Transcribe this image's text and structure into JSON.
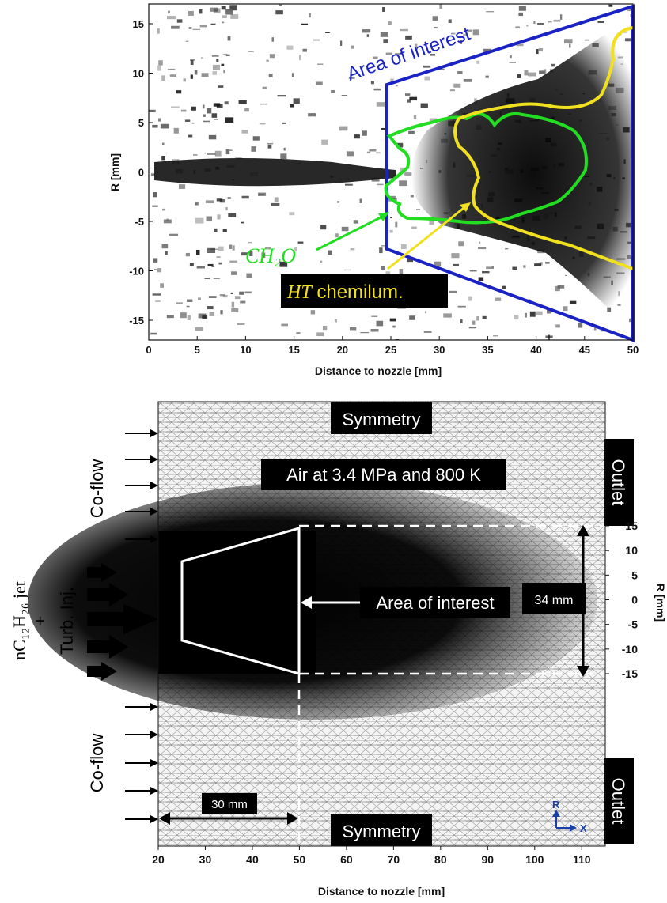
{
  "top_panel": {
    "x_axis": {
      "label": "Distance to nozzle [mm]",
      "range": [
        0,
        50
      ],
      "ticks": [
        "0",
        "5",
        "10",
        "15",
        "20",
        "25",
        "30",
        "35",
        "40",
        "45",
        "50"
      ]
    },
    "y_axis": {
      "label": "R [mm]",
      "range": [
        -17,
        17
      ],
      "ticks": [
        "15",
        "10",
        "5",
        "0",
        "-5",
        "-10",
        "-15"
      ]
    },
    "area_of_interest_label": "Area of interest",
    "ch2o_label": "CH₂O",
    "ht_label_italic": "HT",
    "ht_label_rest": " chemilum.",
    "colors": {
      "area_of_interest": "#1a22c4",
      "ch2o_contour": "#22dd22",
      "ht_contour": "#f0e020"
    }
  },
  "bottom_panel": {
    "x_axis": {
      "label": "Distance to nozzle [mm]",
      "range": [
        20,
        115
      ],
      "ticks": [
        "20",
        "30",
        "40",
        "50",
        "60",
        "70",
        "80",
        "90",
        "100",
        "110"
      ]
    },
    "y_axis": {
      "label": "R [mm]",
      "ticks": [
        "15",
        "10",
        "5",
        "0",
        "-5",
        "-10",
        "-15"
      ]
    },
    "symmetry_top": "Symmetry",
    "symmetry_bottom": "Symmetry",
    "outlet_top": "Outlet",
    "outlet_bottom": "Outlet",
    "air_label": "Air at 3.4 MPa and 800 K",
    "coflow_top": "Co-flow",
    "coflow_bottom": "Co-flow",
    "jet_label": "nC₁₂H₂₆ jet",
    "plus": "+",
    "turb_label": "Turb. Inj.",
    "area_label": "Area of interest",
    "dim_34": "34 mm",
    "dim_30": "30 mm",
    "axis_r": "R",
    "axis_x": "X"
  }
}
